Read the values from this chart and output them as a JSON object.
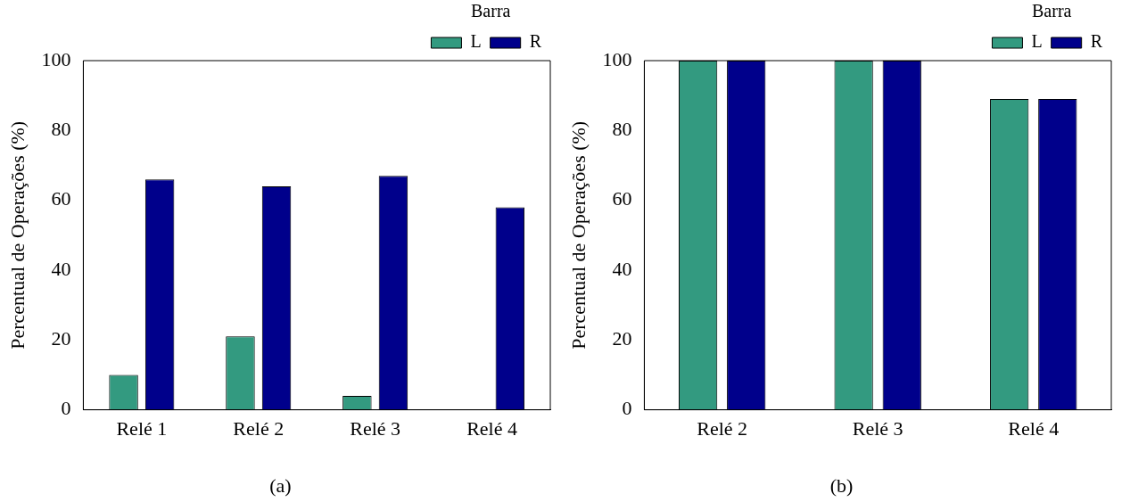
{
  "chart_data": [
    {
      "type": "bar",
      "ylabel": "Percentual de Operações (%)",
      "categories": [
        "Relé 1",
        "Relé 2",
        "Relé 3",
        "Relé 4"
      ],
      "series": [
        {
          "name": "L",
          "color": "#339a80",
          "values": [
            10,
            21,
            4,
            0
          ]
        },
        {
          "name": "R",
          "color": "#00008b",
          "values": [
            66,
            64,
            67,
            58
          ]
        }
      ],
      "ylim": [
        0,
        100
      ],
      "yticks": [
        0,
        20,
        40,
        60,
        80,
        100
      ],
      "grid": false,
      "legend": "top right",
      "legend_title": "Barra",
      "annotations": [
        "(a)"
      ]
    },
    {
      "type": "bar",
      "ylabel": "Percentual de Operações (%)",
      "categories": [
        "Relé 2",
        "Relé 3",
        "Relé 4"
      ],
      "series": [
        {
          "name": "L",
          "color": "#339a80",
          "values": [
            100,
            100,
            89
          ]
        },
        {
          "name": "R",
          "color": "#00008b",
          "values": [
            100,
            100,
            89
          ]
        }
      ],
      "ylim": [
        0,
        100
      ],
      "yticks": [
        0,
        20,
        40,
        60,
        80,
        100
      ],
      "grid": false,
      "legend": "top right",
      "legend_title": "Barra",
      "annotations": [
        "(b)"
      ]
    }
  ]
}
